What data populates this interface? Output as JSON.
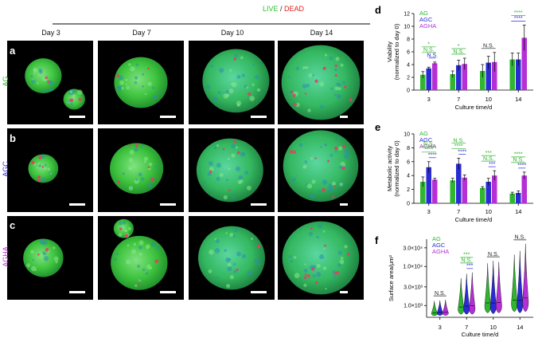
{
  "header": {
    "live": "LIVE",
    "sep": " / ",
    "dead": "DEAD",
    "days": [
      "Day 3",
      "Day 7",
      "Day 10",
      "Day 14"
    ]
  },
  "rows": [
    {
      "letter": "a",
      "label": "AG",
      "color": "#2fb52f"
    },
    {
      "letter": "b",
      "label": "AGC",
      "color": "#2b2bd6"
    },
    {
      "letter": "c",
      "label": "AGHA",
      "color": "#c032d6"
    }
  ],
  "colors": {
    "AG": "#2fb52f",
    "AGC": "#2b2bd6",
    "AGHA": "#b52fd6",
    "live": "#22cc22",
    "dead": "#e02020"
  },
  "chart_data": [
    {
      "panel": "d",
      "type": "bar",
      "ylabel": "Viability",
      "ylabel2": "(normalized to day 0)",
      "xlabel": "Culture time/d",
      "categories": [
        "3",
        "7",
        "10",
        "14"
      ],
      "ylim": [
        0,
        12
      ],
      "yticks": [
        "0",
        "2",
        "4",
        "6",
        "8",
        "10",
        "12"
      ],
      "legend": [
        "AG",
        "AGC",
        "AGHA"
      ],
      "series": [
        {
          "name": "AG",
          "values": [
            2.4,
            2.5,
            3.0,
            4.8
          ],
          "errors": [
            0.5,
            0.5,
            1.0,
            1.0
          ]
        },
        {
          "name": "AGC",
          "values": [
            3.4,
            3.9,
            4.3,
            4.8
          ],
          "errors": [
            0.2,
            0.8,
            1.0,
            1.0
          ]
        },
        {
          "name": "AGHA",
          "values": [
            4.2,
            4.1,
            4.4,
            8.2
          ],
          "errors": [
            0.2,
            0.9,
            1.5,
            2.0
          ]
        }
      ],
      "sig": [
        {
          "cat": 0,
          "text": "*",
          "color": "#2fb52f",
          "tier": 0
        },
        {
          "cat": 0,
          "text": "N.S.",
          "color": "#2fb52f",
          "tier": 1
        },
        {
          "cat": 0,
          "text": "N.S.",
          "color": "#2b2bd6",
          "tier": 2
        },
        {
          "cat": 1,
          "text": "*",
          "color": "#2fb52f",
          "tier": 0
        },
        {
          "cat": 1,
          "text": "N.S.",
          "color": "#2fb52f",
          "tier": 1
        },
        {
          "cat": 2,
          "text": "N.S.",
          "color": "#222222",
          "tier": 1
        },
        {
          "cat": 3,
          "text": "****",
          "color": "#2fb52f",
          "tier": 0
        },
        {
          "cat": 3,
          "text": "****",
          "color": "#2b2bd6",
          "tier": 1
        }
      ]
    },
    {
      "panel": "e",
      "type": "bar",
      "ylabel": "Metabolic activity",
      "ylabel2": "(normalized to day 0)",
      "xlabel": "Culture time/d",
      "categories": [
        "3",
        "7",
        "10",
        "14"
      ],
      "ylim": [
        0,
        10
      ],
      "yticks": [
        "0",
        "2",
        "4",
        "6",
        "8",
        "10"
      ],
      "legend": [
        "AG",
        "AGC",
        "AGHA"
      ],
      "series": [
        {
          "name": "AG",
          "values": [
            3.1,
            3.3,
            2.2,
            1.4
          ],
          "errors": [
            0.7,
            0.3,
            0.2,
            0.2
          ]
        },
        {
          "name": "AGC",
          "values": [
            5.2,
            5.7,
            3.1,
            1.5
          ],
          "errors": [
            0.8,
            0.8,
            0.5,
            0.3
          ]
        },
        {
          "name": "AGHA",
          "values": [
            3.4,
            3.7,
            4.0,
            4.0
          ],
          "errors": [
            0.2,
            0.4,
            0.7,
            0.5
          ]
        }
      ],
      "sig": [
        {
          "cat": 0,
          "text": "N.S.",
          "color": "#2fb52f",
          "tier": 0
        },
        {
          "cat": 0,
          "text": "****",
          "color": "#2fb52f",
          "tier": 1
        },
        {
          "cat": 0,
          "text": "****",
          "color": "#2b2bd6",
          "tier": 2
        },
        {
          "cat": 1,
          "text": "N.S.",
          "color": "#2fb52f",
          "tier": 0
        },
        {
          "cat": 1,
          "text": "****",
          "color": "#2fb52f",
          "tier": 1
        },
        {
          "cat": 1,
          "text": "****",
          "color": "#2b2bd6",
          "tier": 2
        },
        {
          "cat": 2,
          "text": "***",
          "color": "#2fb52f",
          "tier": 0
        },
        {
          "cat": 2,
          "text": "N.S.",
          "color": "#2fb52f",
          "tier": 1
        },
        {
          "cat": 2,
          "text": "***",
          "color": "#2b2bd6",
          "tier": 2
        },
        {
          "cat": 3,
          "text": "****",
          "color": "#2fb52f",
          "tier": 0
        },
        {
          "cat": 3,
          "text": "N.S.",
          "color": "#2fb52f",
          "tier": 1
        },
        {
          "cat": 3,
          "text": "****",
          "color": "#2b2bd6",
          "tier": 2
        }
      ]
    },
    {
      "panel": "f",
      "type": "violin",
      "ylabel": "Surface area/μm²",
      "xlabel": "Culture time/d",
      "categories": [
        "3",
        "7",
        "10",
        "14"
      ],
      "yscale": "log",
      "yticks": [
        "1.0×10³",
        "3.0×10³",
        "1.0×10⁴",
        "3.0×10⁴"
      ],
      "ytick_values": [
        1000,
        3000,
        10000,
        30000
      ],
      "ylim": [
        500,
        50000
      ],
      "legend": [
        "AG",
        "AGC",
        "AGHA"
      ],
      "series": [
        {
          "name": "AG",
          "ranges": [
            [
              550,
              1300
            ],
            [
              600,
              5000
            ],
            [
              650,
              12000
            ],
            [
              700,
              20000
            ]
          ]
        },
        {
          "name": "AGC",
          "ranges": [
            [
              560,
              1350
            ],
            [
              600,
              6500
            ],
            [
              620,
              14000
            ],
            [
              650,
              25000
            ]
          ]
        },
        {
          "name": "AGHA",
          "ranges": [
            [
              560,
              1400
            ],
            [
              600,
              7000
            ],
            [
              650,
              13000
            ],
            [
              700,
              38000
            ]
          ]
        }
      ],
      "sig": [
        {
          "cat": 0,
          "text": "N.S.",
          "color": "#222222",
          "tier": 0
        },
        {
          "cat": 1,
          "text": "***",
          "color": "#2fb52f",
          "tier": 0
        },
        {
          "cat": 1,
          "text": "N.S.",
          "color": "#2fb52f",
          "tier": 1
        },
        {
          "cat": 1,
          "text": "***",
          "color": "#2b2bd6",
          "tier": 2
        },
        {
          "cat": 2,
          "text": "N.S.",
          "color": "#222222",
          "tier": 0
        },
        {
          "cat": 3,
          "text": "N.S.",
          "color": "#222222",
          "tier": 0
        }
      ]
    }
  ]
}
